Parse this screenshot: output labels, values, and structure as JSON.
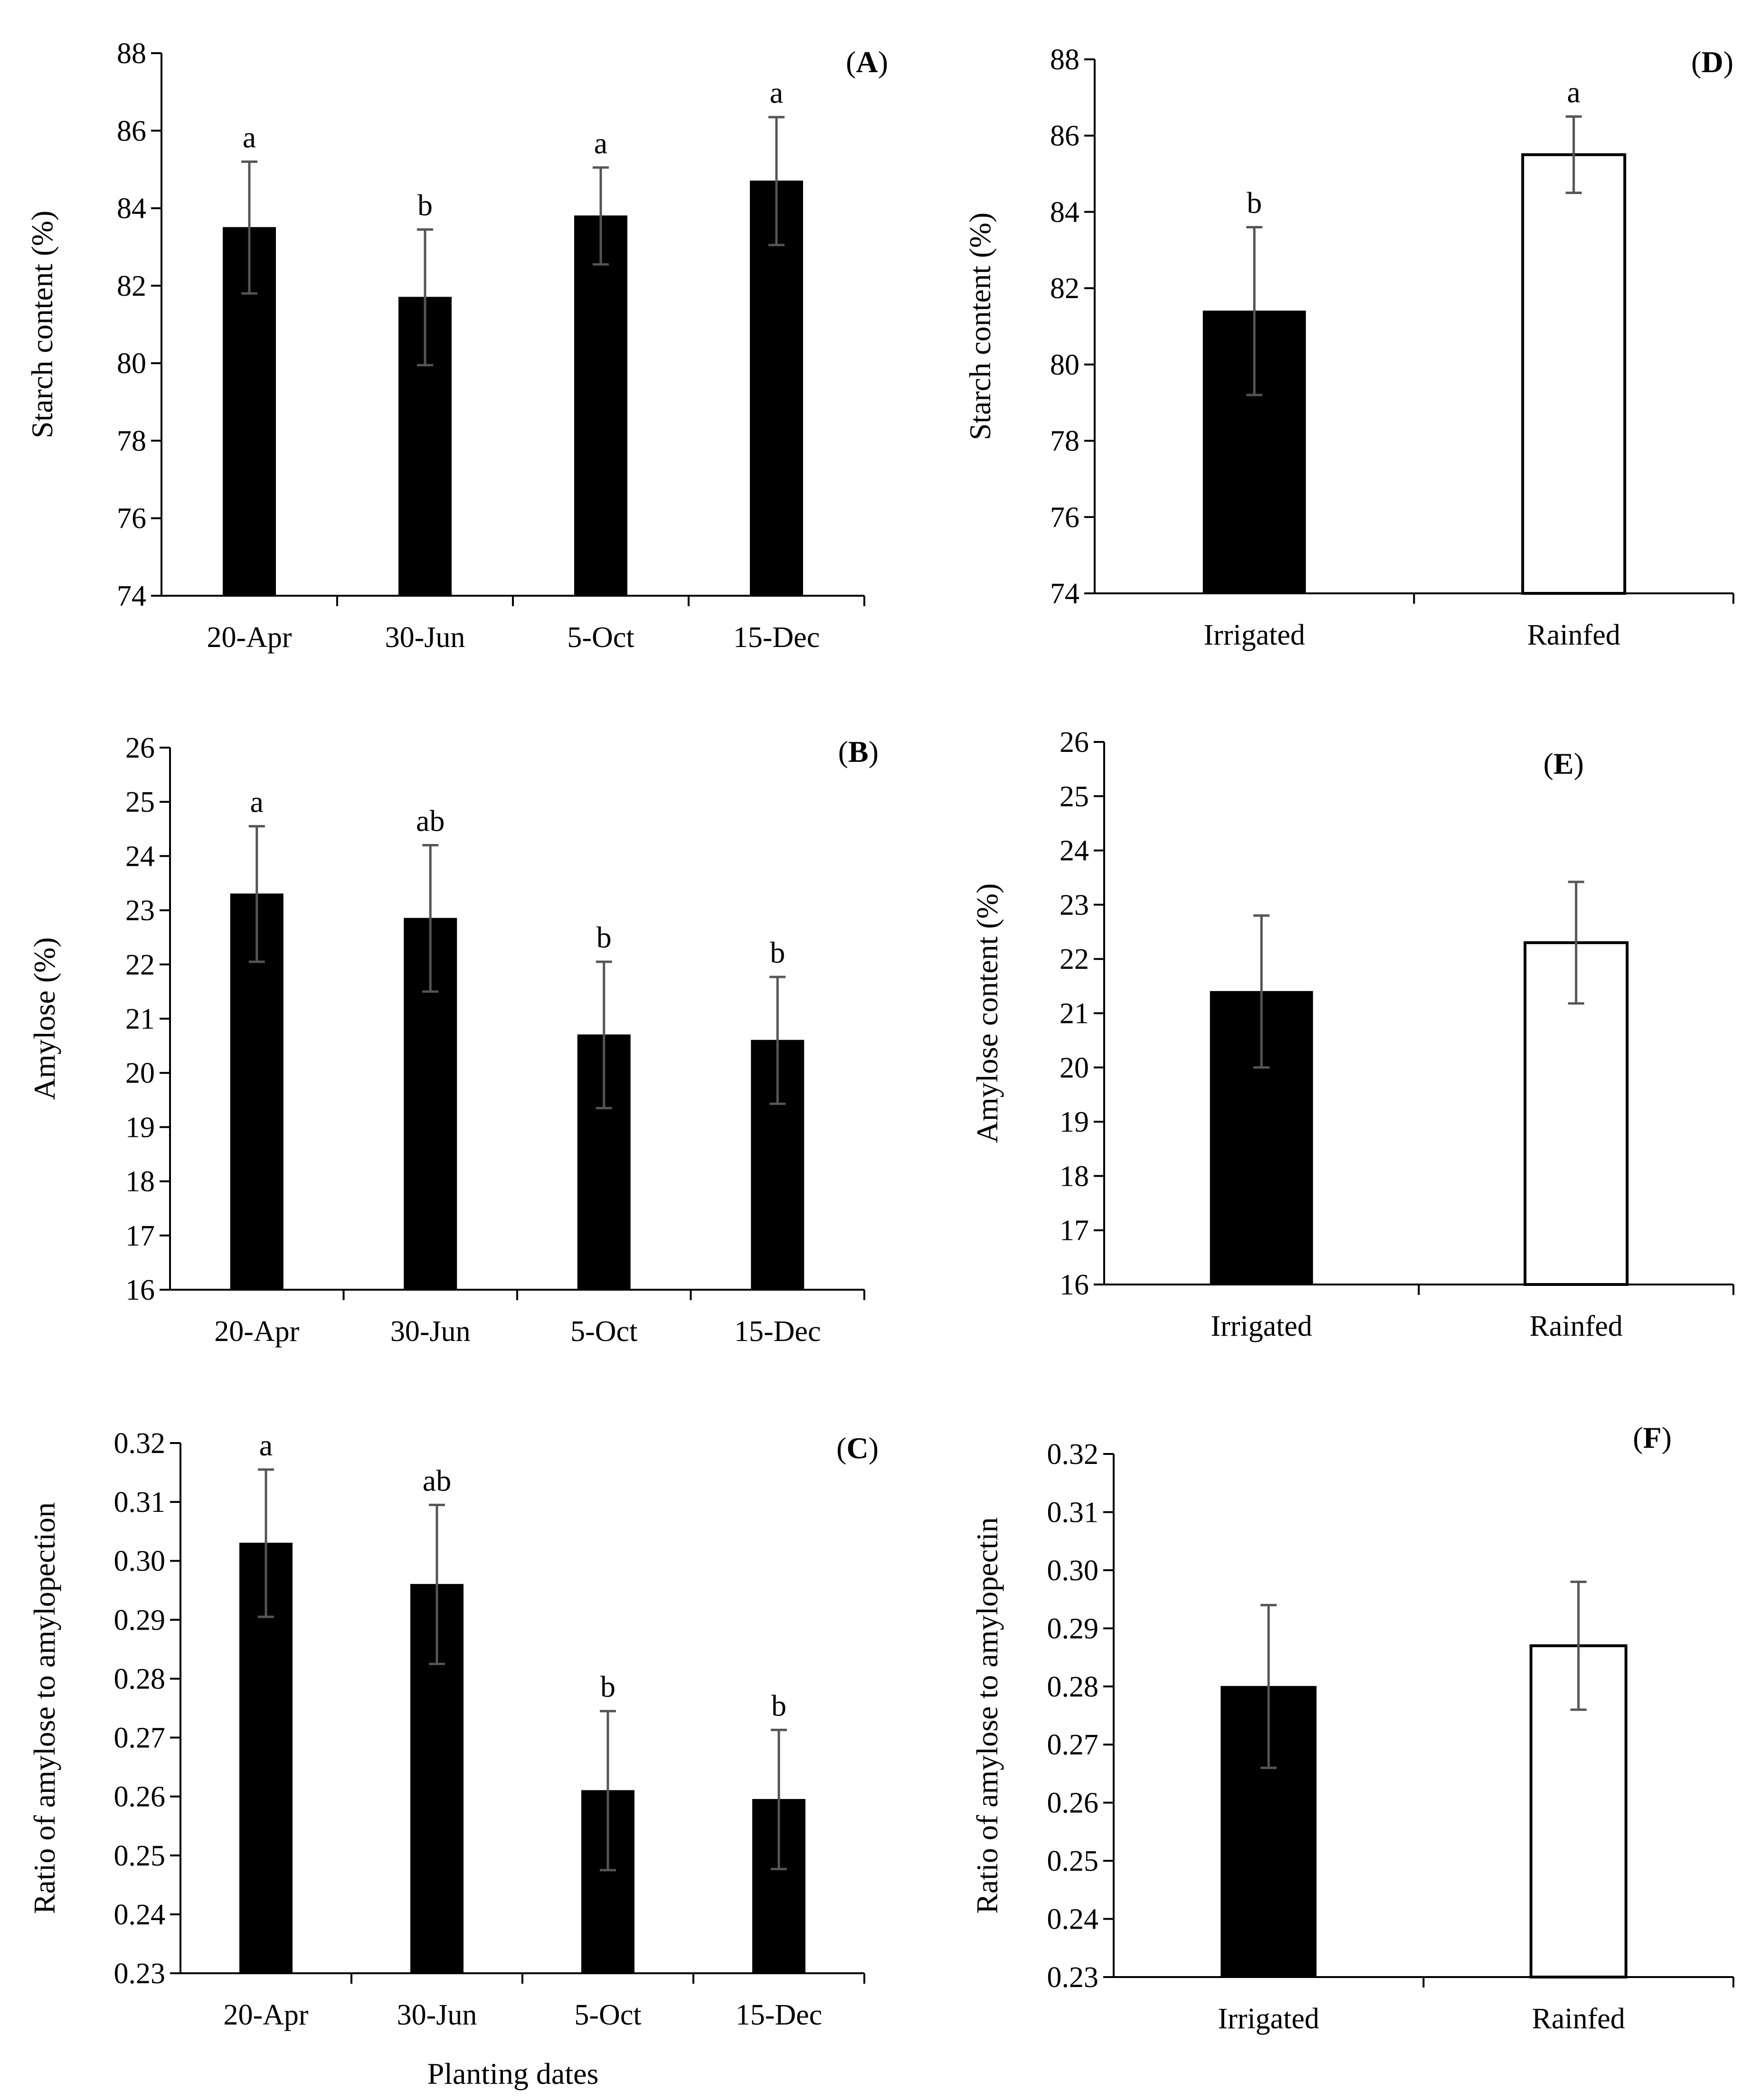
{
  "figure": {
    "colors": {
      "ink": "#000000",
      "errorbar": "#555555",
      "filled": "#000000",
      "hollow": "#ffffff"
    }
  },
  "chart_data": [
    {
      "id": "A",
      "panel_label": "A",
      "type": "bar",
      "title": "",
      "xlabel": "",
      "ylabel": "Starch content (%)",
      "ylim": [
        74,
        88
      ],
      "yticks": [
        74,
        76,
        78,
        80,
        82,
        84,
        86,
        88
      ],
      "decimals": 0,
      "categories": [
        "20-Apr",
        "30-Jun",
        "5-Oct",
        "15-Dec"
      ],
      "values": [
        83.5,
        81.7,
        83.8,
        84.7
      ],
      "errors": [
        1.7,
        1.75,
        1.25,
        1.65
      ],
      "letters": [
        "a",
        "b",
        "a",
        "a"
      ],
      "fills": [
        "filled",
        "filled",
        "filled",
        "filled"
      ]
    },
    {
      "id": "B",
      "panel_label": "B",
      "type": "bar",
      "title": "",
      "xlabel": "",
      "ylabel": "Amylose (%)",
      "ylim": [
        16,
        26
      ],
      "yticks": [
        16,
        17,
        18,
        19,
        20,
        21,
        22,
        23,
        24,
        25,
        26
      ],
      "decimals": 0,
      "categories": [
        "20-Apr",
        "30-Jun",
        "5-Oct",
        "15-Dec"
      ],
      "values": [
        23.3,
        22.85,
        20.7,
        20.6
      ],
      "errors": [
        1.25,
        1.35,
        1.35,
        1.17
      ],
      "letters": [
        "a",
        "ab",
        "b",
        "b"
      ],
      "fills": [
        "filled",
        "filled",
        "filled",
        "filled"
      ]
    },
    {
      "id": "C",
      "panel_label": "C",
      "type": "bar",
      "title": "",
      "xlabel": "Planting dates",
      "ylabel": "Ratio of amylose to amylopection",
      "ylim": [
        0.23,
        0.32
      ],
      "yticks": [
        0.23,
        0.24,
        0.25,
        0.26,
        0.27,
        0.28,
        0.29,
        0.3,
        0.31,
        0.32
      ],
      "decimals": 2,
      "categories": [
        "20-Apr",
        "30-Jun",
        "5-Oct",
        "15-Dec"
      ],
      "values": [
        0.303,
        0.296,
        0.261,
        0.2595
      ],
      "errors": [
        0.0125,
        0.0135,
        0.0135,
        0.0118
      ],
      "letters": [
        "a",
        "ab",
        "b",
        "b"
      ],
      "fills": [
        "filled",
        "filled",
        "filled",
        "filled"
      ]
    },
    {
      "id": "D",
      "panel_label": "D",
      "type": "bar",
      "title": "",
      "xlabel": "",
      "ylabel": "Starch content (%)",
      "ylim": [
        74,
        88
      ],
      "yticks": [
        74,
        76,
        78,
        80,
        82,
        84,
        86,
        88
      ],
      "decimals": 0,
      "categories": [
        "Irrigated",
        "Rainfed"
      ],
      "values": [
        81.4,
        85.5
      ],
      "errors": [
        2.2,
        1.0
      ],
      "letters": [
        "b",
        "a"
      ],
      "fills": [
        "filled",
        "hollow"
      ]
    },
    {
      "id": "E",
      "panel_label": "E",
      "type": "bar",
      "title": "",
      "xlabel": "",
      "ylabel": "Amylose content (%)",
      "ylim": [
        16,
        26
      ],
      "yticks": [
        16,
        17,
        18,
        19,
        20,
        21,
        22,
        23,
        24,
        25,
        26
      ],
      "decimals": 0,
      "categories": [
        "Irrigated",
        "Rainfed"
      ],
      "values": [
        21.4,
        22.3
      ],
      "errors": [
        1.4,
        1.12
      ],
      "letters": [
        "",
        ""
      ],
      "fills": [
        "filled",
        "hollow"
      ]
    },
    {
      "id": "F",
      "panel_label": "F",
      "type": "bar",
      "title": "",
      "xlabel": "",
      "ylabel": "Ratio of amylose to amylopectin",
      "ylim": [
        0.23,
        0.32
      ],
      "yticks": [
        0.23,
        0.24,
        0.25,
        0.26,
        0.27,
        0.28,
        0.29,
        0.3,
        0.31,
        0.32
      ],
      "decimals": 2,
      "categories": [
        "Irrigated",
        "Rainfed"
      ],
      "values": [
        0.28,
        0.287
      ],
      "errors": [
        0.014,
        0.011
      ],
      "letters": [
        "",
        ""
      ],
      "fills": [
        "filled",
        "hollow"
      ]
    }
  ]
}
